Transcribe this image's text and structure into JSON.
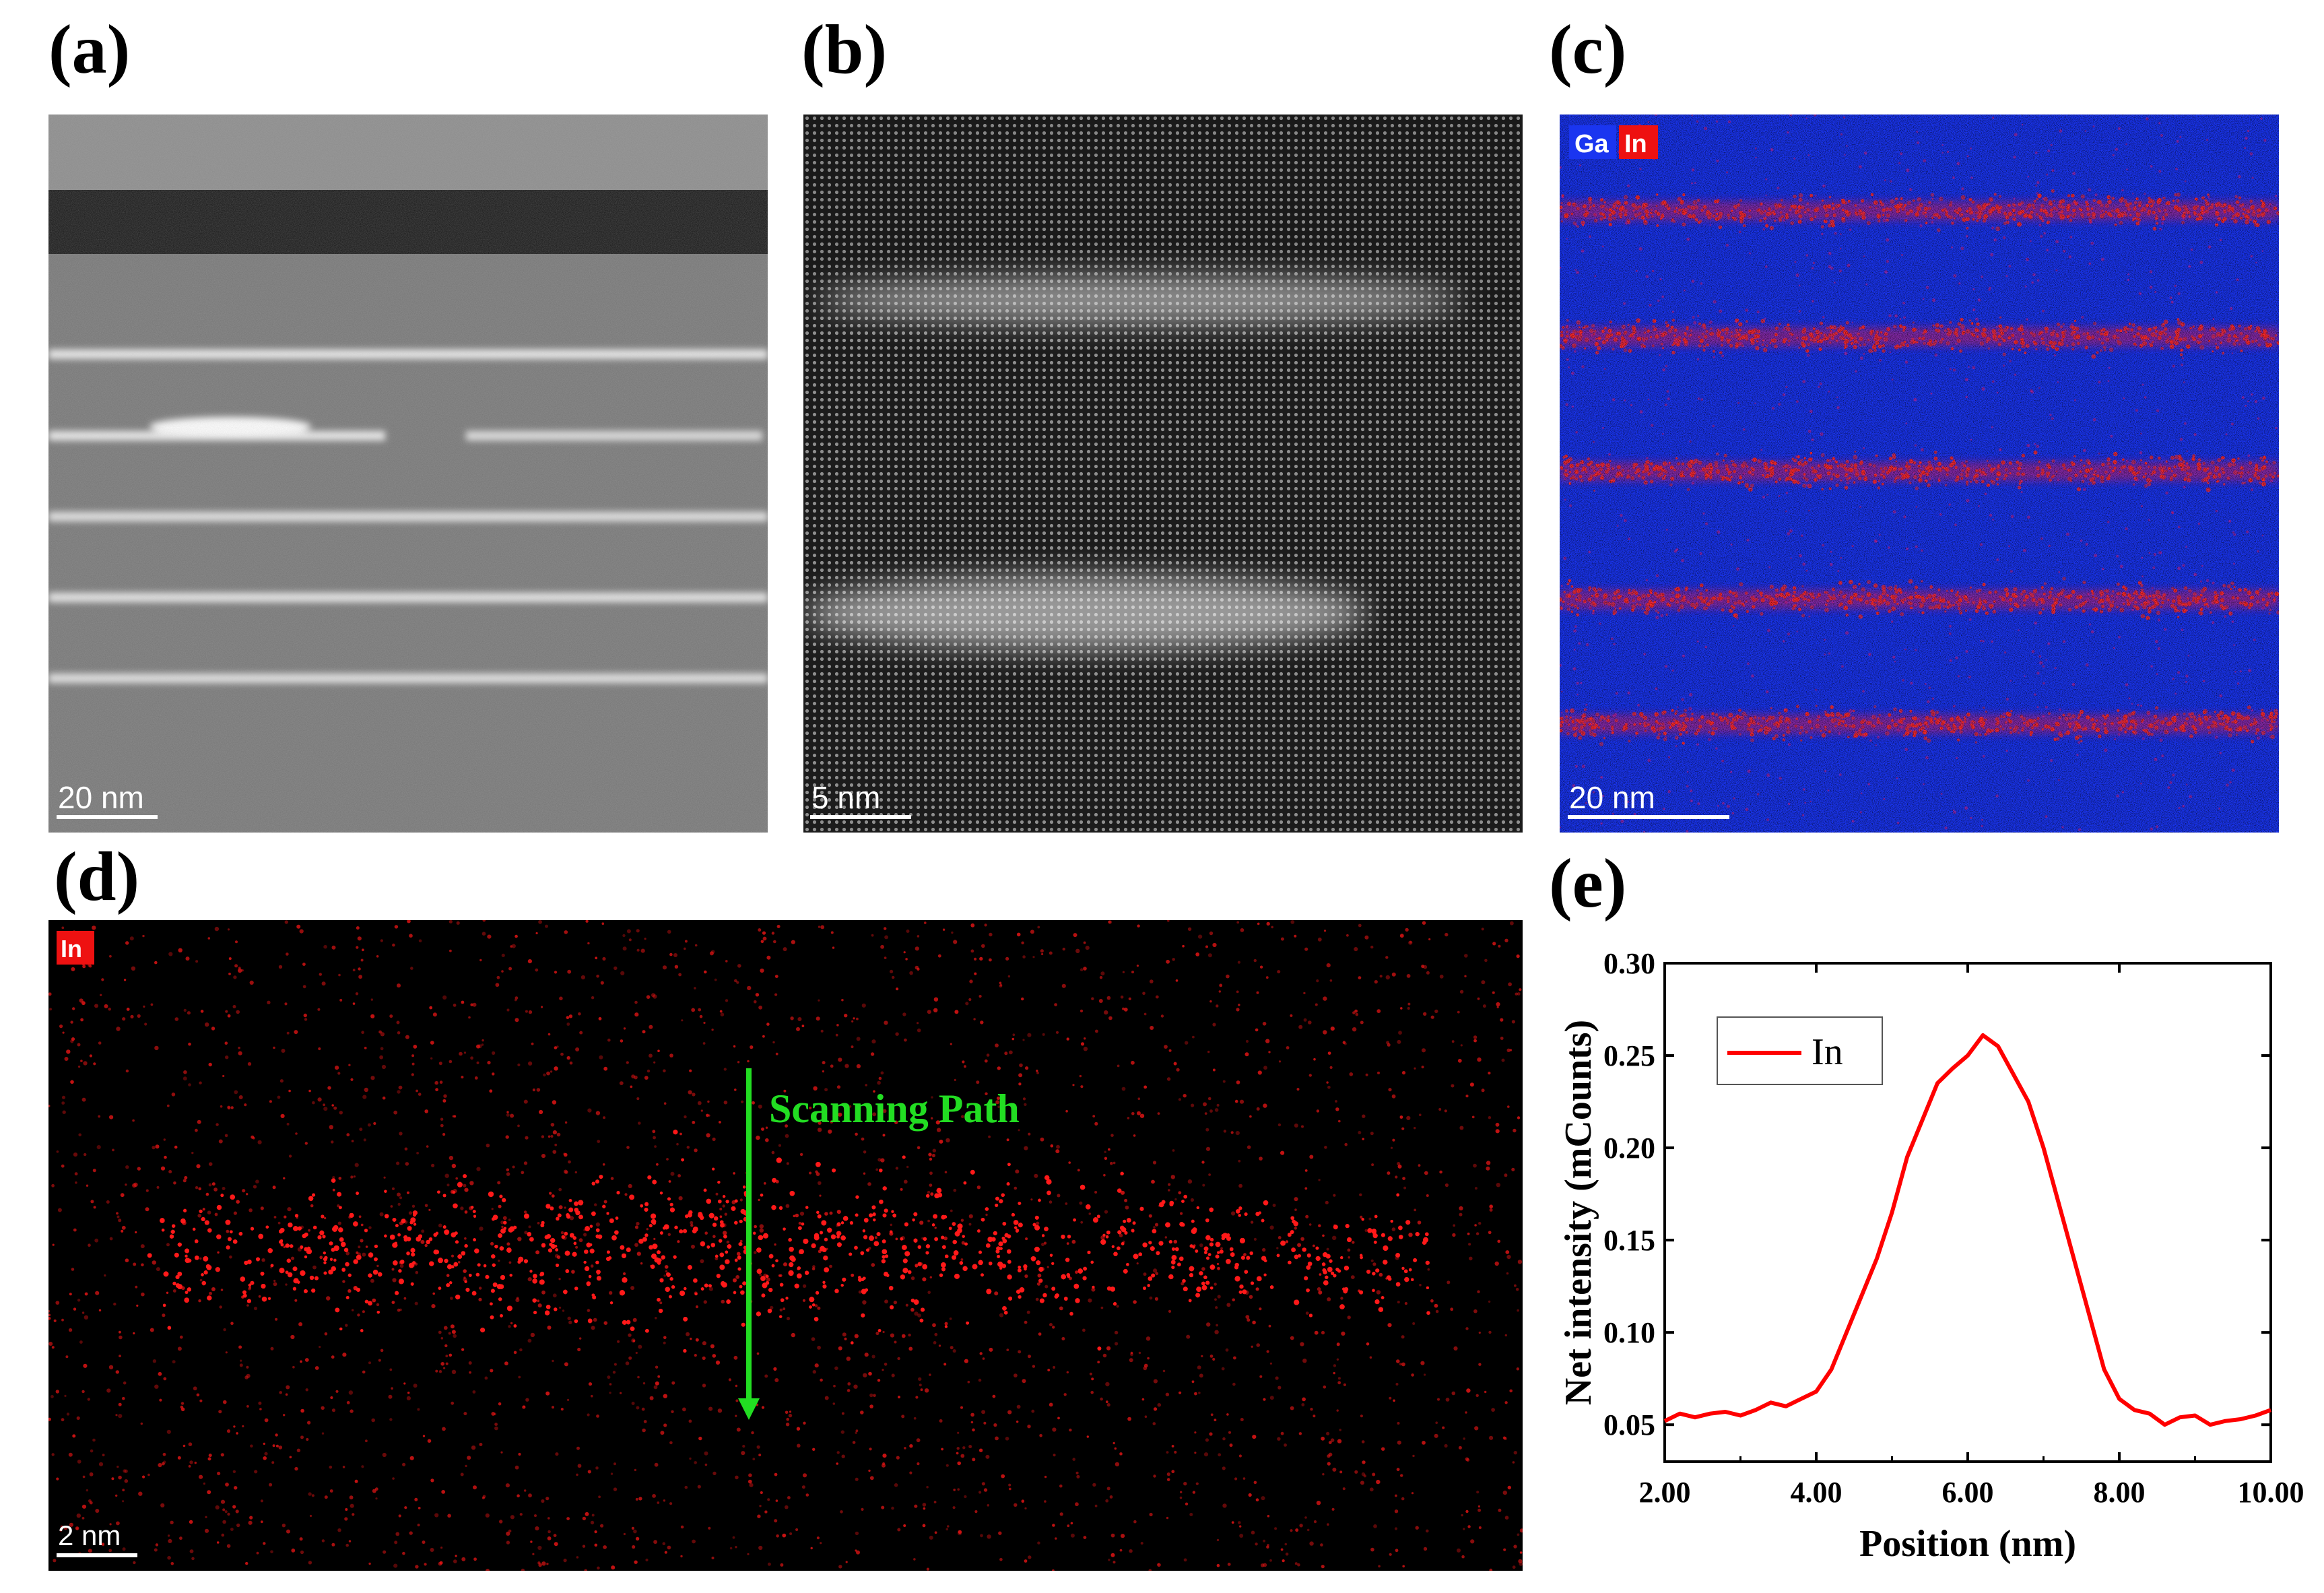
{
  "labels": {
    "a": "(a)",
    "b": "(b)",
    "c": "(c)",
    "d": "(d)",
    "e": "(e)"
  },
  "panel_a": {
    "scale_bar": "20 nm"
  },
  "panel_b": {
    "scale_bar": "5 nm"
  },
  "panel_c": {
    "scale_bar": "20 nm",
    "legend": [
      "Ga",
      "In"
    ]
  },
  "panel_d": {
    "scale_bar": "2 nm",
    "legend": "In",
    "annotation": "Scanning Path"
  },
  "colors": {
    "ga": "#1a3cff",
    "in": "#ff1a1a",
    "arrow": "#22dd22",
    "line": "#ff0000"
  },
  "chart_data": {
    "type": "line",
    "xlabel": "Position (nm)",
    "ylabel": "Net intensity (mCounts)",
    "xlim": [
      2.0,
      10.0
    ],
    "ylim": [
      0.03,
      0.3
    ],
    "xticks": [
      "2.00",
      "4.00",
      "6.00",
      "8.00",
      "10.00"
    ],
    "yticks": [
      "0.05",
      "0.10",
      "0.15",
      "0.20",
      "0.25",
      "0.30"
    ],
    "legend_position": "top-left",
    "series": [
      {
        "name": "In",
        "x": [
          2.0,
          2.2,
          2.4,
          2.6,
          2.8,
          3.0,
          3.2,
          3.4,
          3.6,
          3.8,
          4.0,
          4.2,
          4.4,
          4.6,
          4.8,
          5.0,
          5.2,
          5.4,
          5.6,
          5.8,
          6.0,
          6.2,
          6.4,
          6.6,
          6.8,
          7.0,
          7.2,
          7.4,
          7.6,
          7.8,
          8.0,
          8.2,
          8.4,
          8.6,
          8.8,
          9.0,
          9.2,
          9.4,
          9.6,
          9.8,
          10.0
        ],
        "y": [
          0.052,
          0.056,
          0.054,
          0.056,
          0.057,
          0.055,
          0.058,
          0.062,
          0.06,
          0.064,
          0.068,
          0.08,
          0.1,
          0.12,
          0.14,
          0.165,
          0.195,
          0.215,
          0.235,
          0.243,
          0.25,
          0.261,
          0.255,
          0.24,
          0.225,
          0.2,
          0.17,
          0.14,
          0.11,
          0.08,
          0.064,
          0.058,
          0.056,
          0.05,
          0.054,
          0.055,
          0.05,
          0.052,
          0.053,
          0.055,
          0.058
        ]
      }
    ]
  }
}
